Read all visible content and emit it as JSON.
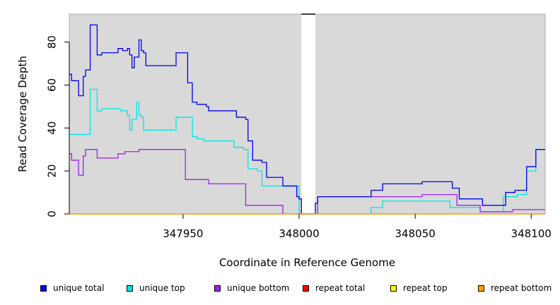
{
  "chart_data": {
    "type": "line",
    "xlabel": "Coordinate in Reference Genome",
    "ylabel": "Read Coverage Depth",
    "xlim": [
      347901,
      348106
    ],
    "ylim": [
      0,
      93
    ],
    "x_ticks": [
      347950,
      348000,
      348050,
      348100
    ],
    "y_ticks": [
      0,
      20,
      40,
      60,
      80
    ],
    "background_color": "#d9d9d9",
    "gap_region": [
      348001,
      348007
    ],
    "legend_position": "bottom",
    "series": [
      {
        "name": "unique top",
        "color": "#00e5e5",
        "points": [
          [
            347901,
            37
          ],
          [
            347910,
            37
          ],
          [
            347910,
            58
          ],
          [
            347913,
            58
          ],
          [
            347913,
            48
          ],
          [
            347915,
            48
          ],
          [
            347915,
            49
          ],
          [
            347923,
            49
          ],
          [
            347923,
            48
          ],
          [
            347926,
            48
          ],
          [
            347926,
            46
          ],
          [
            347927,
            46
          ],
          [
            347927,
            39
          ],
          [
            347928,
            39
          ],
          [
            347928,
            44
          ],
          [
            347930,
            44
          ],
          [
            347930,
            52
          ],
          [
            347931,
            52
          ],
          [
            347931,
            46
          ],
          [
            347932,
            46
          ],
          [
            347932,
            45
          ],
          [
            347933,
            45
          ],
          [
            347933,
            39
          ],
          [
            347947,
            39
          ],
          [
            347947,
            45
          ],
          [
            347954,
            45
          ],
          [
            347954,
            36
          ],
          [
            347956,
            36
          ],
          [
            347956,
            35
          ],
          [
            347959,
            35
          ],
          [
            347959,
            34
          ],
          [
            347972,
            34
          ],
          [
            347972,
            31
          ],
          [
            347976,
            31
          ],
          [
            347976,
            30
          ],
          [
            347978,
            30
          ],
          [
            347978,
            21
          ],
          [
            347982,
            21
          ],
          [
            347982,
            20
          ],
          [
            347984,
            20
          ],
          [
            347984,
            13
          ],
          [
            347993,
            13
          ],
          [
            347993,
            13
          ],
          [
            348000,
            13
          ],
          [
            348000,
            0
          ],
          [
            348001,
            0
          ],
          [
            348007,
            0
          ],
          [
            348031,
            0
          ],
          [
            348031,
            3
          ],
          [
            348036,
            3
          ],
          [
            348036,
            6
          ],
          [
            348065,
            6
          ],
          [
            348065,
            3
          ],
          [
            348078,
            3
          ],
          [
            348078,
            1
          ],
          [
            348088,
            1
          ],
          [
            348088,
            8
          ],
          [
            348094,
            8
          ],
          [
            348094,
            9
          ],
          [
            348098,
            9
          ],
          [
            348098,
            20
          ],
          [
            348102,
            20
          ],
          [
            348102,
            30
          ],
          [
            348106,
            30
          ]
        ]
      },
      {
        "name": "unique bottom",
        "color": "#a020f0",
        "points": [
          [
            347901,
            28
          ],
          [
            347902,
            28
          ],
          [
            347902,
            25
          ],
          [
            347905,
            25
          ],
          [
            347905,
            18
          ],
          [
            347907,
            18
          ],
          [
            347907,
            27
          ],
          [
            347908,
            27
          ],
          [
            347908,
            30
          ],
          [
            347913,
            30
          ],
          [
            347913,
            26
          ],
          [
            347922,
            26
          ],
          [
            347922,
            28
          ],
          [
            347925,
            28
          ],
          [
            347925,
            29
          ],
          [
            347931,
            29
          ],
          [
            347931,
            30
          ],
          [
            347951,
            30
          ],
          [
            347951,
            16
          ],
          [
            347961,
            16
          ],
          [
            347961,
            14
          ],
          [
            347977,
            14
          ],
          [
            347977,
            4
          ],
          [
            347993,
            4
          ],
          [
            347993,
            0
          ],
          [
            348001,
            0
          ],
          [
            348007,
            0
          ],
          [
            348008,
            0
          ],
          [
            348008,
            8
          ],
          [
            348053,
            8
          ],
          [
            348053,
            9
          ],
          [
            348068,
            9
          ],
          [
            348068,
            4
          ],
          [
            348078,
            4
          ],
          [
            348078,
            1
          ],
          [
            348092,
            1
          ],
          [
            348092,
            2
          ],
          [
            348106,
            2
          ]
        ]
      },
      {
        "name": "unique total",
        "color": "#0000ee",
        "points": [
          [
            347901,
            65
          ],
          [
            347902,
            65
          ],
          [
            347902,
            62
          ],
          [
            347905,
            62
          ],
          [
            347905,
            55
          ],
          [
            347907,
            55
          ],
          [
            347907,
            64
          ],
          [
            347908,
            64
          ],
          [
            347908,
            67
          ],
          [
            347910,
            67
          ],
          [
            347910,
            88
          ],
          [
            347913,
            88
          ],
          [
            347913,
            74
          ],
          [
            347915,
            74
          ],
          [
            347915,
            75
          ],
          [
            347922,
            75
          ],
          [
            347922,
            77
          ],
          [
            347924,
            77
          ],
          [
            347924,
            76
          ],
          [
            347926,
            76
          ],
          [
            347926,
            77
          ],
          [
            347927,
            77
          ],
          [
            347927,
            74
          ],
          [
            347928,
            74
          ],
          [
            347928,
            68
          ],
          [
            347929,
            68
          ],
          [
            347929,
            73
          ],
          [
            347931,
            73
          ],
          [
            347931,
            81
          ],
          [
            347932,
            81
          ],
          [
            347932,
            76
          ],
          [
            347933,
            76
          ],
          [
            347933,
            75
          ],
          [
            347934,
            75
          ],
          [
            347934,
            69
          ],
          [
            347947,
            69
          ],
          [
            347947,
            75
          ],
          [
            347952,
            75
          ],
          [
            347952,
            61
          ],
          [
            347954,
            61
          ],
          [
            347954,
            52
          ],
          [
            347956,
            52
          ],
          [
            347956,
            51
          ],
          [
            347960,
            51
          ],
          [
            347960,
            50
          ],
          [
            347961,
            50
          ],
          [
            347961,
            48
          ],
          [
            347973,
            48
          ],
          [
            347973,
            45
          ],
          [
            347977,
            45
          ],
          [
            347977,
            44
          ],
          [
            347978,
            44
          ],
          [
            347978,
            34
          ],
          [
            347980,
            34
          ],
          [
            347980,
            25
          ],
          [
            347984,
            25
          ],
          [
            347984,
            24
          ],
          [
            347986,
            24
          ],
          [
            347986,
            17
          ],
          [
            347993,
            17
          ],
          [
            347993,
            13
          ],
          [
            347999,
            13
          ],
          [
            347999,
            8
          ],
          [
            348000,
            8
          ],
          [
            348000,
            7
          ],
          [
            348001,
            7
          ],
          [
            348001,
            0
          ],
          [
            348007,
            0
          ],
          [
            348007,
            5
          ],
          [
            348008,
            5
          ],
          [
            348008,
            8
          ],
          [
            348031,
            8
          ],
          [
            348031,
            11
          ],
          [
            348036,
            11
          ],
          [
            348036,
            14
          ],
          [
            348053,
            14
          ],
          [
            348053,
            15
          ],
          [
            348066,
            15
          ],
          [
            348066,
            12
          ],
          [
            348069,
            12
          ],
          [
            348069,
            7
          ],
          [
            348079,
            7
          ],
          [
            348079,
            4
          ],
          [
            348089,
            4
          ],
          [
            348089,
            10
          ],
          [
            348093,
            10
          ],
          [
            348093,
            11
          ],
          [
            348098,
            11
          ],
          [
            348098,
            22
          ],
          [
            348102,
            22
          ],
          [
            348102,
            30
          ],
          [
            348106,
            30
          ]
        ]
      },
      {
        "name": "repeat total",
        "color": "#ff0000",
        "points": [
          [
            347901,
            0
          ],
          [
            348106,
            0
          ]
        ]
      },
      {
        "name": "repeat top",
        "color": "#ffff00",
        "points": [
          [
            347901,
            0
          ],
          [
            348106,
            0
          ]
        ]
      },
      {
        "name": "repeat bottom",
        "color": "#ffa500",
        "points": [
          [
            347901,
            0
          ],
          [
            348106,
            0
          ]
        ]
      }
    ],
    "legend": [
      {
        "label": "unique total",
        "color": "#0000ee"
      },
      {
        "label": "unique top",
        "color": "#00e5e5"
      },
      {
        "label": "unique bottom",
        "color": "#a020f0"
      },
      {
        "label": "repeat total",
        "color": "#ff0000"
      },
      {
        "label": "repeat top",
        "color": "#ffff00"
      },
      {
        "label": "repeat bottom",
        "color": "#ffa500"
      }
    ]
  }
}
